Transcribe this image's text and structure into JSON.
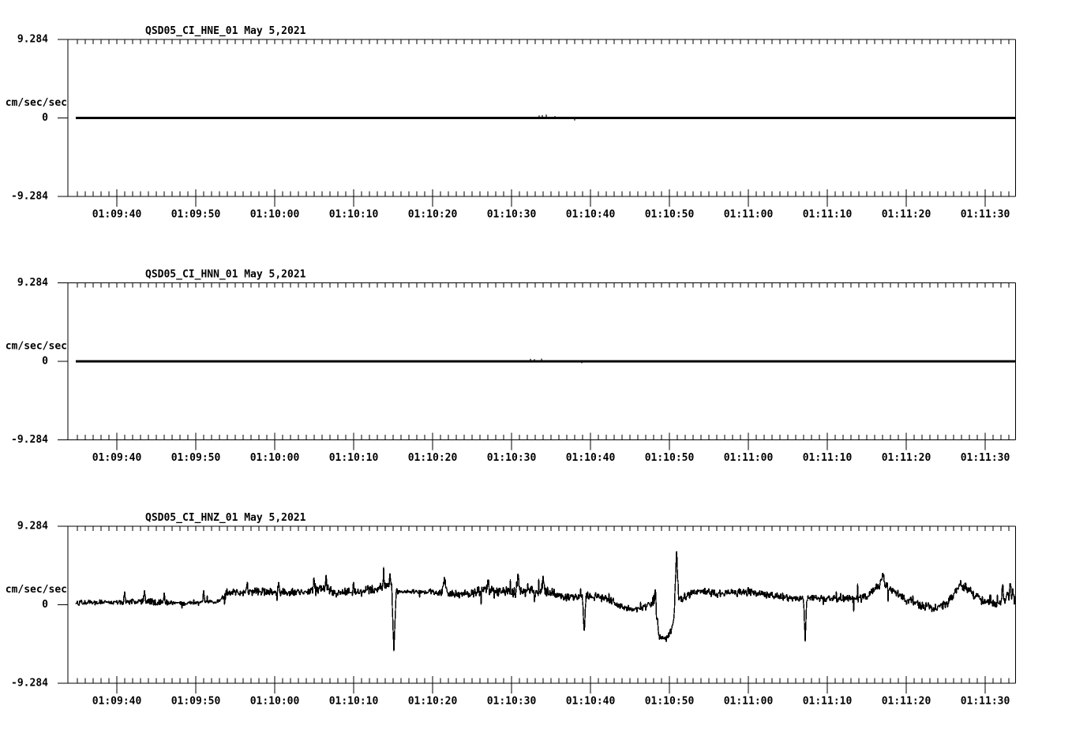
{
  "page": {
    "background": "#ffffff",
    "foreground": "#000000",
    "description": "Three-panel strong-motion seismogram acceleration plot"
  },
  "chart_data": {
    "type": "line",
    "kind": "seismogram",
    "date_label": "May 5,2021",
    "x_axis": {
      "start_time": "01:09:34",
      "end_time": "01:11:34",
      "major_tick_labels": [
        "01:09:40",
        "01:09:50",
        "01:10:00",
        "01:10:10",
        "01:10:20",
        "01:10:30",
        "01:10:40",
        "01:10:50",
        "01:11:00",
        "01:11:10",
        "01:11:20",
        "01:11:30"
      ],
      "major_tick_interval_sec": 10,
      "minor_tick_interval_sec": 1
    },
    "y_axis": {
      "units_label": "cm/sec/sec",
      "max": 9.284,
      "min": -9.284,
      "tick_labels": [
        "9.284",
        "0",
        "-9.284"
      ]
    },
    "panels": [
      {
        "name": "QSD05_CI_HNE_01",
        "trace": "flat",
        "baseline": 0,
        "events": [
          {
            "t": "01:10:33.5",
            "a": 0.3
          },
          {
            "t": "01:10:33.9",
            "a": 0.34
          },
          {
            "t": "01:10:34.4",
            "a": 0.4
          },
          {
            "t": "01:10:35.5",
            "a": 0.22
          },
          {
            "t": "01:10:38.0",
            "a": -0.3
          }
        ]
      },
      {
        "name": "QSD05_CI_HNN_01",
        "trace": "flat",
        "baseline": 0,
        "events": [
          {
            "t": "01:10:32.4",
            "a": 0.3
          },
          {
            "t": "01:10:32.9",
            "a": 0.26
          },
          {
            "t": "01:10:33.8",
            "a": 0.32
          },
          {
            "t": "01:10:38.9",
            "a": -0.22
          }
        ]
      },
      {
        "name": "QSD05_CI_HNZ_01",
        "trace": "noisy",
        "baseline": 0,
        "envelope": [
          [
            "01:09:33.8",
            0.25,
            0.3
          ],
          [
            "01:09:40.0",
            0.3,
            0.35
          ],
          [
            "01:09:44.0",
            0.35,
            0.45
          ],
          [
            "01:09:47.0",
            0.25,
            0.35
          ],
          [
            "01:09:49.0",
            0.15,
            0.3
          ],
          [
            "01:09:51.0",
            0.35,
            0.2
          ],
          [
            "01:09:53.0",
            0.35,
            0.35
          ],
          [
            "01:09:54.0",
            1.4,
            0.6
          ],
          [
            "01:09:58.0",
            1.6,
            0.55
          ],
          [
            "01:10:00.0",
            1.5,
            0.5
          ],
          [
            "01:10:02.0",
            1.4,
            0.5
          ],
          [
            "01:10:04.0",
            1.5,
            0.55
          ],
          [
            "01:10:06.5",
            1.9,
            0.65
          ],
          [
            "01:10:08.0",
            1.4,
            0.55
          ],
          [
            "01:10:11.0",
            1.5,
            0.55
          ],
          [
            "01:10:13.5",
            2.1,
            0.6
          ],
          [
            "01:10:14.7",
            2.5,
            0.45
          ],
          [
            "01:10:15.6",
            1.5,
            0.35
          ],
          [
            "01:10:16.5",
            1.5,
            0.25
          ],
          [
            "01:10:19.0",
            1.5,
            0.35
          ],
          [
            "01:10:21.0",
            1.4,
            0.5
          ],
          [
            "01:10:24.0",
            1.3,
            0.55
          ],
          [
            "01:10:26.0",
            1.6,
            0.65
          ],
          [
            "01:10:29.0",
            1.5,
            0.7
          ],
          [
            "01:10:32.0",
            1.6,
            0.7
          ],
          [
            "01:10:35.0",
            1.4,
            0.65
          ],
          [
            "01:10:37.0",
            1.0,
            0.6
          ],
          [
            "01:10:40.0",
            1.0,
            0.55
          ],
          [
            "01:10:42.0",
            0.8,
            0.6
          ],
          [
            "01:10:44.0",
            -0.2,
            0.5
          ],
          [
            "01:10:45.5",
            -0.6,
            0.35
          ],
          [
            "01:10:47.0",
            -0.3,
            0.5
          ],
          [
            "01:10:48.2",
            0.6,
            1.1
          ],
          [
            "01:10:48.7",
            -3.8,
            0.35
          ],
          [
            "01:10:49.6",
            -4.0,
            0.35
          ],
          [
            "01:10:50.2",
            -3.0,
            0.5
          ],
          [
            "01:10:50.8",
            -0.8,
            0.7
          ],
          [
            "01:10:51.3",
            0.7,
            0.5
          ],
          [
            "01:10:53.5",
            1.7,
            0.55
          ],
          [
            "01:10:56.0",
            1.3,
            0.5
          ],
          [
            "01:11:00.0",
            1.5,
            0.55
          ],
          [
            "01:11:03.0",
            1.0,
            0.5
          ],
          [
            "01:11:06.0",
            0.8,
            0.45
          ],
          [
            "01:11:09.0",
            0.7,
            0.45
          ],
          [
            "01:11:12.0",
            0.7,
            0.5
          ],
          [
            "01:11:15.0",
            0.9,
            0.55
          ],
          [
            "01:11:16.5",
            2.2,
            0.6
          ],
          [
            "01:11:17.2",
            2.4,
            0.5
          ],
          [
            "01:11:18.5",
            1.5,
            0.5
          ],
          [
            "01:11:20.0",
            0.6,
            0.55
          ],
          [
            "01:11:22.0",
            -0.1,
            0.6
          ],
          [
            "01:11:23.5",
            -0.4,
            0.55
          ],
          [
            "01:11:25.0",
            0.0,
            0.55
          ],
          [
            "01:11:26.5",
            1.8,
            0.6
          ],
          [
            "01:11:27.5",
            2.0,
            0.6
          ],
          [
            "01:11:28.5",
            1.3,
            0.55
          ],
          [
            "01:11:30.0",
            0.3,
            0.45
          ],
          [
            "01:11:31.0",
            0.0,
            0.4
          ],
          [
            "01:11:32.0",
            0.3,
            0.6
          ],
          [
            "01:11:32.8",
            1.2,
            1.0
          ],
          [
            "01:11:33.6",
            1.0,
            1.0
          ],
          [
            "01:11:34.5",
            1.1,
            0.9
          ]
        ],
        "spikes": [
          {
            "t": "01:09:41.0",
            "a": 1.3,
            "w": 0.15
          },
          {
            "t": "01:09:43.5",
            "a": 1.5,
            "w": 0.15
          },
          {
            "t": "01:09:46.0",
            "a": 1.2,
            "w": 0.12
          },
          {
            "t": "01:09:51.0",
            "a": 1.3,
            "w": 0.15
          },
          {
            "t": "01:09:56.5",
            "a": 1.3,
            "w": 0.15
          },
          {
            "t": "01:10:00.5",
            "a": 1.2,
            "w": 0.15
          },
          {
            "t": "01:10:05.0",
            "a": 1.4,
            "w": 0.2
          },
          {
            "t": "01:10:06.5",
            "a": 1.3,
            "w": 0.2
          },
          {
            "t": "01:10:10.0",
            "a": 1.2,
            "w": 0.15
          },
          {
            "t": "01:10:13.8",
            "a": 1.1,
            "w": 0.15
          },
          {
            "t": "01:10:14.6",
            "a": 1.2,
            "w": 0.12
          },
          {
            "t": "01:10:15.1",
            "a": -7.4,
            "w": 0.3
          },
          {
            "t": "01:10:21.5",
            "a": 1.8,
            "w": 0.3
          },
          {
            "t": "01:10:27.0",
            "a": 1.5,
            "w": 0.2
          },
          {
            "t": "01:10:30.8",
            "a": 1.8,
            "w": 0.25
          },
          {
            "t": "01:10:34.0",
            "a": 1.7,
            "w": 0.25
          },
          {
            "t": "01:10:39.2",
            "a": -4.5,
            "w": 0.22
          },
          {
            "t": "01:10:48.2",
            "a": 1.6,
            "w": 0.15
          },
          {
            "t": "01:10:50.9",
            "a": 6.8,
            "w": 0.3
          },
          {
            "t": "01:11:07.2",
            "a": -5.0,
            "w": 0.22
          },
          {
            "t": "01:11:17.0",
            "a": 1.2,
            "w": 0.4
          },
          {
            "t": "01:11:26.8",
            "a": 1.0,
            "w": 0.3
          },
          {
            "t": "01:11:32.2",
            "a": 2.0,
            "w": 0.15
          },
          {
            "t": "01:11:33.2",
            "a": 1.8,
            "w": 0.15
          },
          {
            "t": "01:11:34.2",
            "a": 2.2,
            "w": 0.2
          }
        ]
      }
    ]
  }
}
